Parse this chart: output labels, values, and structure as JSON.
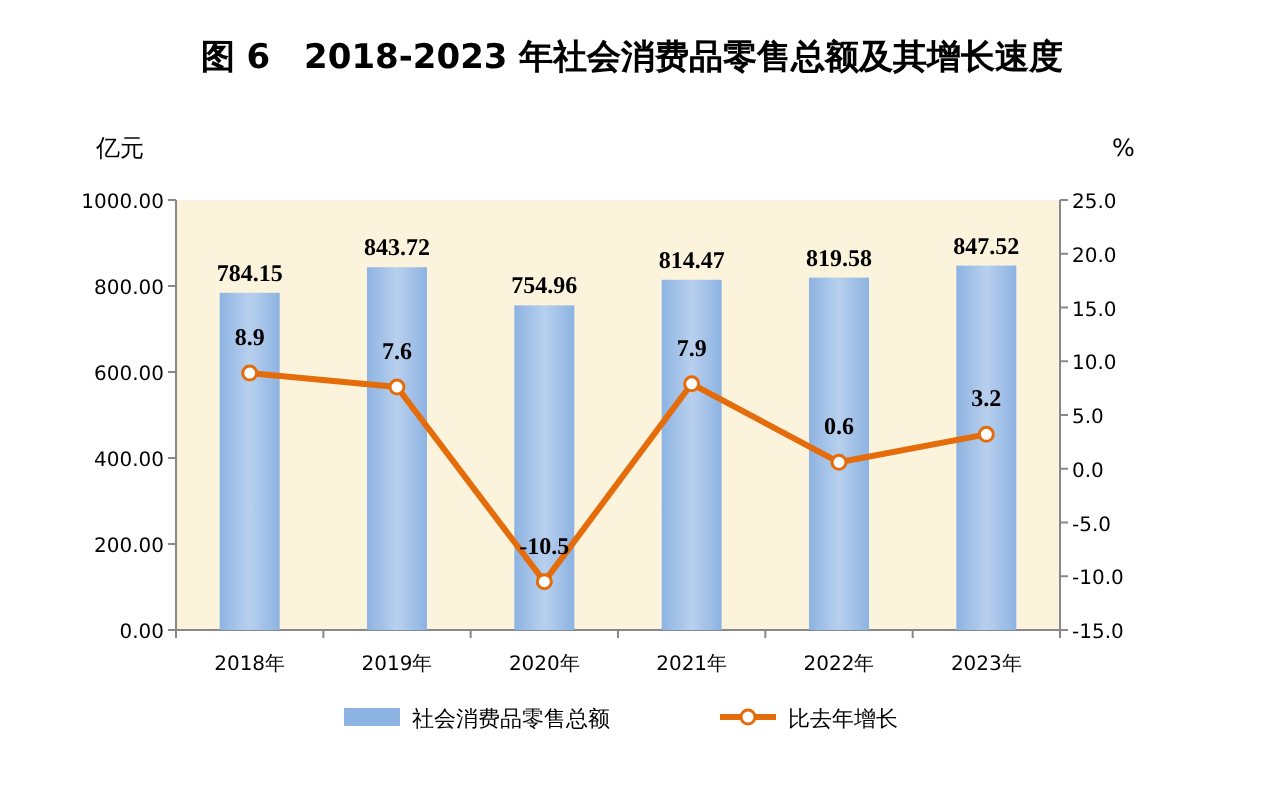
{
  "chart_data": {
    "type": "bar",
    "title": "图 6　2018-2023 年社会消费品零售总额及其增长速度",
    "ylabel": "亿元",
    "y2label": "%",
    "categories": [
      "2018年",
      "2019年",
      "2020年",
      "2021年",
      "2022年",
      "2023年"
    ],
    "series": [
      {
        "name": "社会消费品零售总额",
        "color": "#8db3e2",
        "values": [
          784.15,
          843.72,
          754.96,
          814.47,
          819.58,
          847.52
        ]
      },
      {
        "name": "比去年增长",
        "type": "line",
        "axis": "y2",
        "color": "#e46c0a",
        "marker": "circle",
        "values": [
          8.9,
          7.6,
          -10.5,
          7.9,
          0.6,
          3.2
        ]
      }
    ],
    "ylim": [
      0,
      1000
    ],
    "yticks": [
      {
        "value": 0,
        "label": "0.00"
      },
      {
        "value": 200,
        "label": "200.00"
      },
      {
        "value": 400,
        "label": "400.00"
      },
      {
        "value": 600,
        "label": "600.00"
      },
      {
        "value": 800,
        "label": "800.00"
      },
      {
        "value": 1000,
        "label": "1000.00"
      }
    ],
    "y2lim": [
      -15,
      25
    ],
    "y2ticks": [
      {
        "value": -15,
        "label": "-15.0"
      },
      {
        "value": -10,
        "label": "-10.0"
      },
      {
        "value": -5,
        "label": "-5.0"
      },
      {
        "value": 0,
        "label": "0.0"
      },
      {
        "value": 5,
        "label": "5.0"
      },
      {
        "value": 10,
        "label": "10.0"
      },
      {
        "value": 15,
        "label": "15.0"
      },
      {
        "value": 20,
        "label": "20.0"
      },
      {
        "value": 25,
        "label": "25.0"
      }
    ],
    "data_labels": true,
    "legend": "bottom",
    "grid": false
  }
}
